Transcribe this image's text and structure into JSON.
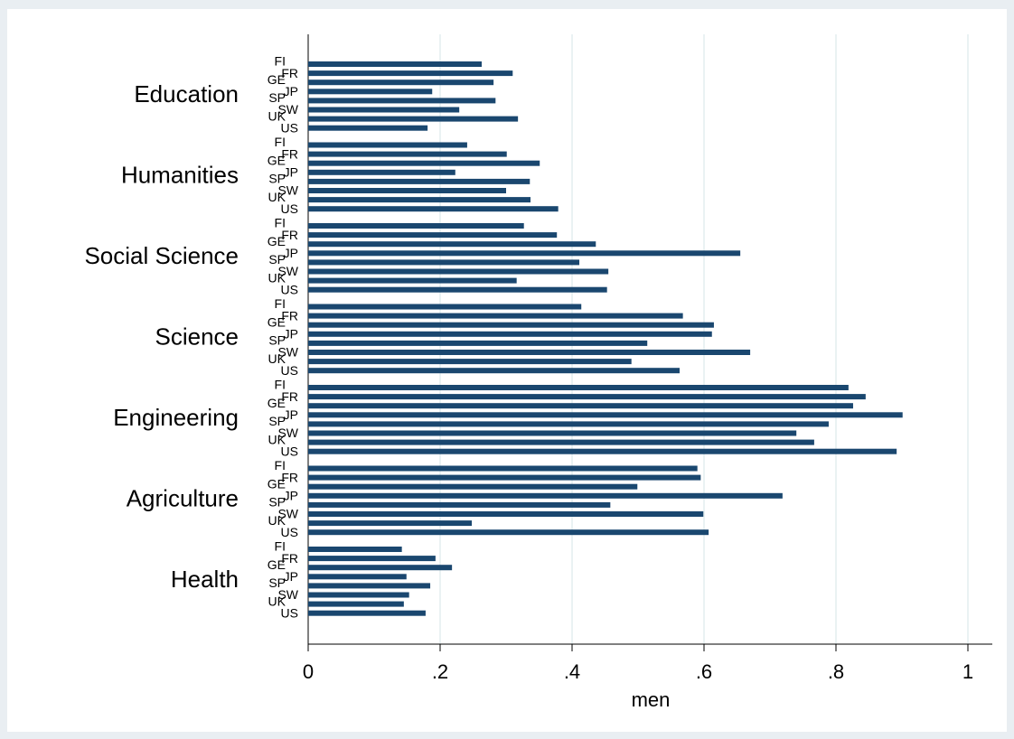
{
  "chart_data": {
    "type": "hbar-grouped",
    "x_label": "men",
    "categories": [
      "Education",
      "Humanities",
      "Social Science",
      "Science",
      "Engineering",
      "Agriculture",
      "Health"
    ],
    "subcategories": [
      "FI",
      "FR",
      "GE",
      "JP",
      "SP",
      "SW",
      "UK",
      "US"
    ],
    "values": [
      [
        0.263,
        0.31,
        0.281,
        0.188,
        0.284,
        0.229,
        0.318,
        0.181
      ],
      [
        0.241,
        0.301,
        0.351,
        0.223,
        0.336,
        0.3,
        0.337,
        0.379
      ],
      [
        0.327,
        0.377,
        0.436,
        0.655,
        0.411,
        0.455,
        0.316,
        0.453
      ],
      [
        0.414,
        0.568,
        0.615,
        0.612,
        0.514,
        0.67,
        0.49,
        0.563
      ],
      [
        0.819,
        0.845,
        0.826,
        0.901,
        0.789,
        0.74,
        0.767,
        0.892
      ],
      [
        0.59,
        0.595,
        0.499,
        0.719,
        0.458,
        0.599,
        0.248,
        0.607
      ],
      [
        0.142,
        0.193,
        0.218,
        0.149,
        0.185,
        0.153,
        0.145,
        0.178
      ]
    ],
    "color": "#1a476f",
    "xlim": [
      0,
      1.037
    ],
    "xticks": [
      0,
      {
        "value": 0.2,
        "label": ".2"
      },
      {
        "value": 0.4,
        "label": ".4"
      },
      {
        "value": 0.6,
        "label": ".6"
      },
      {
        "value": 0.8,
        "label": ".8"
      },
      1
    ],
    "grid": true
  }
}
